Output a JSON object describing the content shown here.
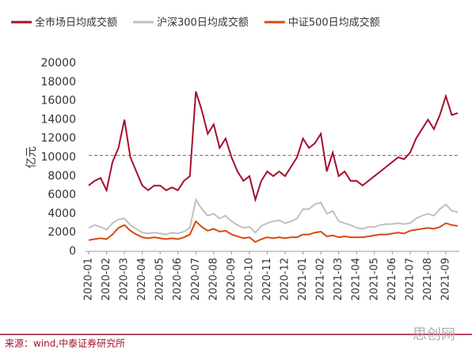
{
  "chart_data": {
    "type": "line",
    "legend_position": "top",
    "y_label": "亿元",
    "source": "来源：wind,中泰证券研究所",
    "watermark": "思创网",
    "categories": [
      "2020-01",
      null,
      null,
      "2020-02",
      null,
      null,
      "2020-03",
      null,
      null,
      "2020-04",
      null,
      null,
      "2020-05",
      null,
      null,
      "2020-06",
      null,
      null,
      "2020-07",
      null,
      null,
      "2020-08",
      null,
      null,
      "2020-09",
      null,
      null,
      "2020-10",
      null,
      null,
      "2020-11",
      null,
      null,
      "2020-12",
      null,
      null,
      "2021-01",
      null,
      null,
      "2021-02",
      null,
      null,
      "2021-03",
      null,
      null,
      "2021-04",
      null,
      null,
      "2021-05",
      null,
      null,
      "2021-06",
      null,
      null,
      "2021-07",
      null,
      null,
      "2021-08",
      null,
      null,
      "2021-09",
      null,
      null
    ],
    "series": [
      {
        "name": "全市场日均成交额",
        "color": "#a50f2d",
        "values": [
          7000,
          7500,
          7800,
          6500,
          9500,
          11000,
          14000,
          10000,
          8500,
          7000,
          6500,
          7000,
          7000,
          6500,
          6800,
          6500,
          7500,
          8000,
          17000,
          15000,
          12500,
          13500,
          11000,
          12000,
          10000,
          8500,
          7500,
          8000,
          5500,
          7500,
          8500,
          8000,
          8500,
          8000,
          9000,
          10000,
          12000,
          11000,
          11500,
          12500,
          8500,
          10500,
          8000,
          8500,
          7500,
          7500,
          7000,
          7500,
          8000,
          8500,
          9000,
          9500,
          10000,
          9800,
          10500,
          12000,
          13000,
          14000,
          13000,
          14500,
          16500,
          14500,
          14700
        ]
      },
      {
        "name": "沪深300日均成交额",
        "color": "#c0c0c0",
        "values": [
          2500,
          2800,
          2600,
          2300,
          3000,
          3400,
          3500,
          2800,
          2400,
          2000,
          1900,
          2000,
          1900,
          1800,
          2000,
          1900,
          2100,
          2500,
          5500,
          4500,
          3800,
          4000,
          3500,
          3800,
          3200,
          2800,
          2500,
          2600,
          2000,
          2700,
          3000,
          3200,
          3300,
          3000,
          3200,
          3500,
          4500,
          4500,
          5000,
          5200,
          4000,
          4300,
          3200,
          3000,
          2800,
          2500,
          2400,
          2600,
          2600,
          2800,
          2900,
          2900,
          3000,
          2900,
          3000,
          3500,
          3800,
          4000,
          3800,
          4500,
          5000,
          4300,
          4200
        ]
      },
      {
        "name": "中证500日均成交额",
        "color": "#d9480f",
        "values": [
          1200,
          1300,
          1400,
          1300,
          1800,
          2500,
          2800,
          2200,
          1800,
          1500,
          1400,
          1500,
          1400,
          1300,
          1400,
          1300,
          1500,
          1800,
          3200,
          2600,
          2200,
          2400,
          2100,
          2200,
          1800,
          1600,
          1400,
          1500,
          1000,
          1300,
          1500,
          1400,
          1500,
          1400,
          1500,
          1500,
          1800,
          1800,
          2000,
          2100,
          1600,
          1700,
          1500,
          1600,
          1500,
          1500,
          1500,
          1600,
          1700,
          1800,
          1800,
          1900,
          2000,
          1900,
          2200,
          2300,
          2400,
          2500,
          2400,
          2600,
          3000,
          2800,
          2700
        ]
      }
    ],
    "reference_line": 10200,
    "ylim": [
      0,
      20000
    ],
    "yticks": [
      0,
      2000,
      4000,
      6000,
      8000,
      10000,
      12000,
      14000,
      16000,
      18000,
      20000
    ]
  }
}
